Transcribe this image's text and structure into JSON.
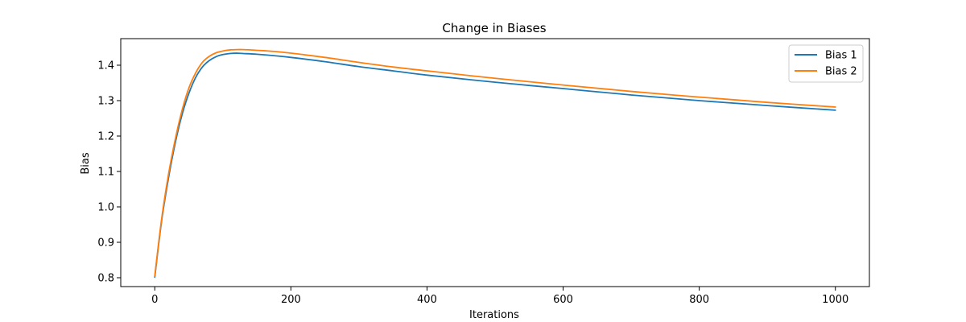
{
  "chart_data": {
    "type": "line",
    "title": "Change in Biases",
    "xlabel": "Iterations",
    "ylabel": "Bias",
    "xlim": [
      -50,
      1050
    ],
    "ylim": [
      0.775,
      1.475
    ],
    "xticks": [
      0,
      200,
      400,
      600,
      800,
      1000
    ],
    "yticks": [
      0.8,
      0.9,
      1.0,
      1.1,
      1.2,
      1.3,
      1.4
    ],
    "xtick_labels": [
      "0",
      "200",
      "400",
      "600",
      "800",
      "1000"
    ],
    "ytick_labels": [
      "0.8",
      "0.9",
      "1.0",
      "1.1",
      "1.2",
      "1.3",
      "1.4"
    ],
    "grid": false,
    "legend": {
      "position": "top-right"
    },
    "series": [
      {
        "name": "Bias 1",
        "color": "#1f77b4",
        "x": [
          0,
          10,
          20,
          30,
          40,
          50,
          60,
          70,
          80,
          90,
          100,
          110,
          120,
          130,
          150,
          175,
          200,
          250,
          300,
          350,
          400,
          500,
          600,
          700,
          800,
          900,
          1000
        ],
        "y": [
          0.802,
          0.96,
          1.08,
          1.18,
          1.26,
          1.32,
          1.365,
          1.395,
          1.413,
          1.424,
          1.43,
          1.433,
          1.434,
          1.433,
          1.431,
          1.427,
          1.422,
          1.41,
          1.396,
          1.384,
          1.372,
          1.352,
          1.334,
          1.316,
          1.3,
          1.286,
          1.273
        ]
      },
      {
        "name": "Bias 2",
        "color": "#ff7f0e",
        "x": [
          0,
          10,
          20,
          30,
          40,
          50,
          60,
          70,
          80,
          90,
          100,
          110,
          120,
          130,
          150,
          175,
          200,
          250,
          300,
          350,
          400,
          500,
          600,
          700,
          800,
          900,
          1000
        ],
        "y": [
          0.805,
          0.965,
          1.09,
          1.19,
          1.272,
          1.335,
          1.378,
          1.408,
          1.425,
          1.435,
          1.44,
          1.443,
          1.444,
          1.444,
          1.442,
          1.439,
          1.434,
          1.422,
          1.408,
          1.395,
          1.384,
          1.363,
          1.344,
          1.326,
          1.31,
          1.295,
          1.282
        ]
      }
    ]
  }
}
